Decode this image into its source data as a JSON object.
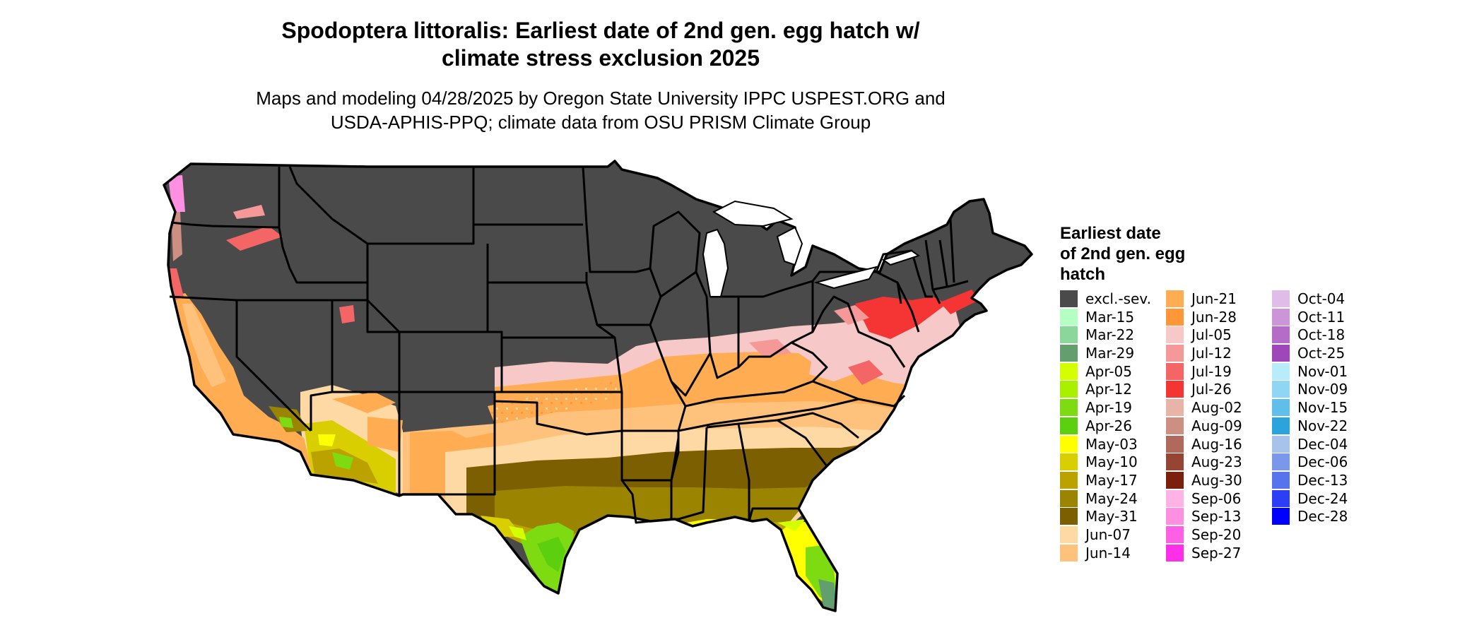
{
  "title": "Spodoptera littoralis: Earliest date of 2nd gen. egg hatch w/\nclimate stress exclusion 2025",
  "subtitle": "Maps and modeling 04/28/2025 by Oregon State University IPPC USPEST.ORG and\nUSDA-APHIS-PPQ; climate data from OSU PRISM Climate Group",
  "legend": {
    "title": "Earliest date\nof 2nd gen. egg\nhatch",
    "columns": [
      [
        {
          "label": "excl.-sev.",
          "color": "#4a4a4a"
        },
        {
          "label": "Mar-15",
          "color": "#b3ffc4"
        },
        {
          "label": "Mar-22",
          "color": "#8bd69a"
        },
        {
          "label": "Mar-29",
          "color": "#629e6e"
        },
        {
          "label": "Apr-05",
          "color": "#d4ff00"
        },
        {
          "label": "Apr-12",
          "color": "#a9f000"
        },
        {
          "label": "Apr-19",
          "color": "#7fdb11"
        },
        {
          "label": "Apr-26",
          "color": "#5ccf0e"
        },
        {
          "label": "May-03",
          "color": "#ffff00"
        },
        {
          "label": "May-10",
          "color": "#d9cf00"
        },
        {
          "label": "May-17",
          "color": "#bba200"
        },
        {
          "label": "May-24",
          "color": "#9a8400"
        },
        {
          "label": "May-31",
          "color": "#7c5f00"
        },
        {
          "label": "Jun-07",
          "color": "#ffd9a3"
        },
        {
          "label": "Jun-14",
          "color": "#ffc27c"
        }
      ],
      [
        {
          "label": "Jun-21",
          "color": "#ffac52"
        },
        {
          "label": "Jun-28",
          "color": "#ff9638"
        },
        {
          "label": "Jul-05",
          "color": "#f6c8c8"
        },
        {
          "label": "Jul-12",
          "color": "#f49898"
        },
        {
          "label": "Jul-19",
          "color": "#f46666"
        },
        {
          "label": "Jul-26",
          "color": "#f53434"
        },
        {
          "label": "Aug-02",
          "color": "#e8b4a8"
        },
        {
          "label": "Aug-09",
          "color": "#cc8f81"
        },
        {
          "label": "Aug-16",
          "color": "#b0695b"
        },
        {
          "label": "Aug-23",
          "color": "#964534"
        },
        {
          "label": "Aug-30",
          "color": "#7b200d"
        },
        {
          "label": "Sep-06",
          "color": "#ffb2e6"
        },
        {
          "label": "Sep-13",
          "color": "#ff8fe0"
        },
        {
          "label": "Sep-20",
          "color": "#ff5ee6"
        },
        {
          "label": "Sep-27",
          "color": "#ff2ee8"
        }
      ],
      [
        {
          "label": "Oct-04",
          "color": "#e0bde8"
        },
        {
          "label": "Oct-11",
          "color": "#cc95d9"
        },
        {
          "label": "Oct-18",
          "color": "#b56bc8"
        },
        {
          "label": "Oct-25",
          "color": "#a046bb"
        },
        {
          "label": "Nov-01",
          "color": "#b8ecfa"
        },
        {
          "label": "Nov-09",
          "color": "#8fd6f5"
        },
        {
          "label": "Nov-15",
          "color": "#5fbfea"
        },
        {
          "label": "Nov-22",
          "color": "#2ba3dd"
        },
        {
          "label": "Dec-04",
          "color": "#a7c3ec"
        },
        {
          "label": "Dec-06",
          "color": "#7b97eb"
        },
        {
          "label": "Dec-13",
          "color": "#5773ee"
        },
        {
          "label": "Dec-24",
          "color": "#2c3ff6"
        },
        {
          "label": "Dec-28",
          "color": "#0000ff"
        }
      ]
    ]
  }
}
